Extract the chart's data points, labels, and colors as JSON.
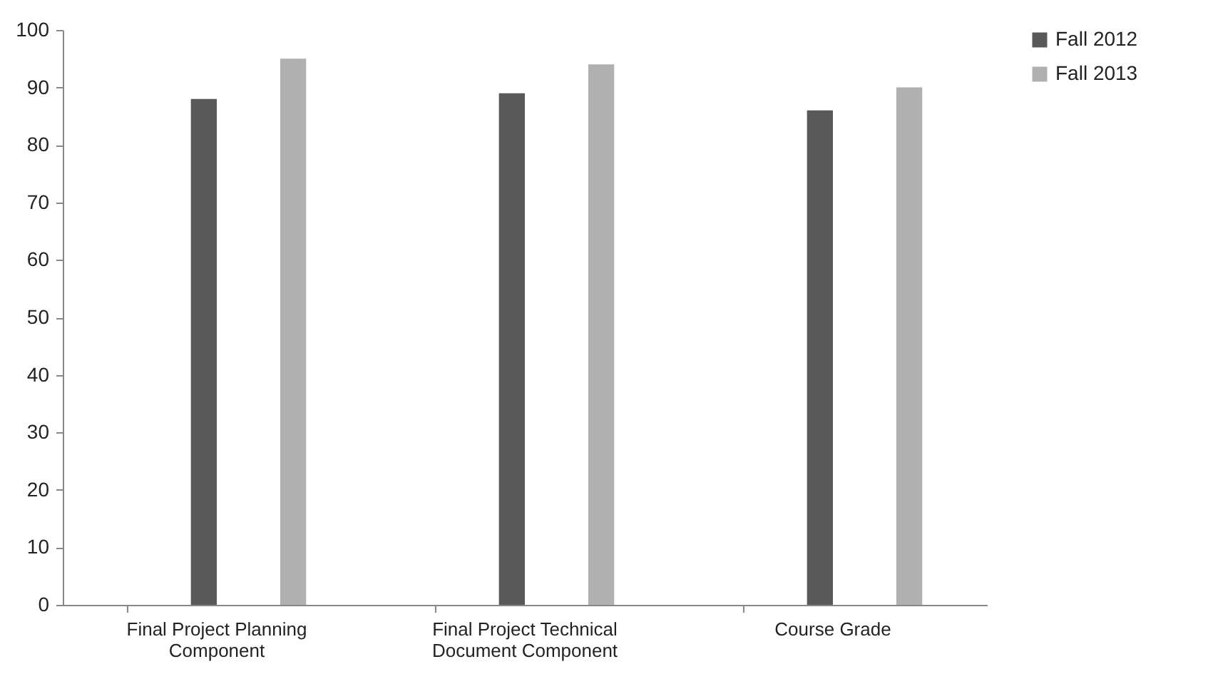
{
  "chart_data": {
    "type": "bar",
    "categories": [
      "Final Project Planning Component",
      "Final Project Technical Document Component",
      "Course Grade"
    ],
    "series": [
      {
        "name": "Fall 2012",
        "color": "#595959",
        "values": [
          88,
          89,
          86
        ]
      },
      {
        "name": "Fall 2013",
        "color": "#b0b0b0",
        "values": [
          95,
          94,
          90
        ]
      }
    ],
    "ylim": [
      0,
      100
    ],
    "yticks": [
      0,
      10,
      20,
      30,
      40,
      50,
      60,
      70,
      80,
      90,
      100
    ],
    "grid": false,
    "legend": "right"
  }
}
